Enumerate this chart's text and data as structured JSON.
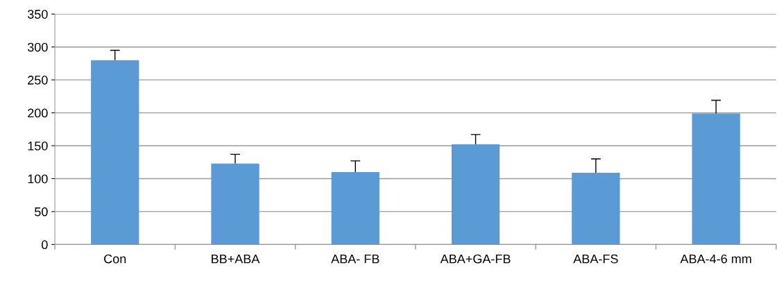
{
  "chart_data": {
    "type": "bar",
    "categories": [
      "Con",
      "BB+ABA",
      "ABA- FB",
      "ABA+GA-FB",
      "ABA-FS",
      "ABA-4-6 mm"
    ],
    "values": [
      280,
      123,
      110,
      152,
      109,
      199
    ],
    "errors": [
      [
        280,
        295
      ],
      [
        123,
        137
      ],
      [
        110,
        127
      ],
      [
        152,
        167
      ],
      [
        109,
        130
      ],
      [
        199,
        219
      ]
    ],
    "color": "#5b9bd5",
    "ylim": [
      0,
      350
    ],
    "yticks": [
      0,
      50,
      100,
      150,
      200,
      250,
      300,
      350
    ],
    "grid": "y"
  }
}
